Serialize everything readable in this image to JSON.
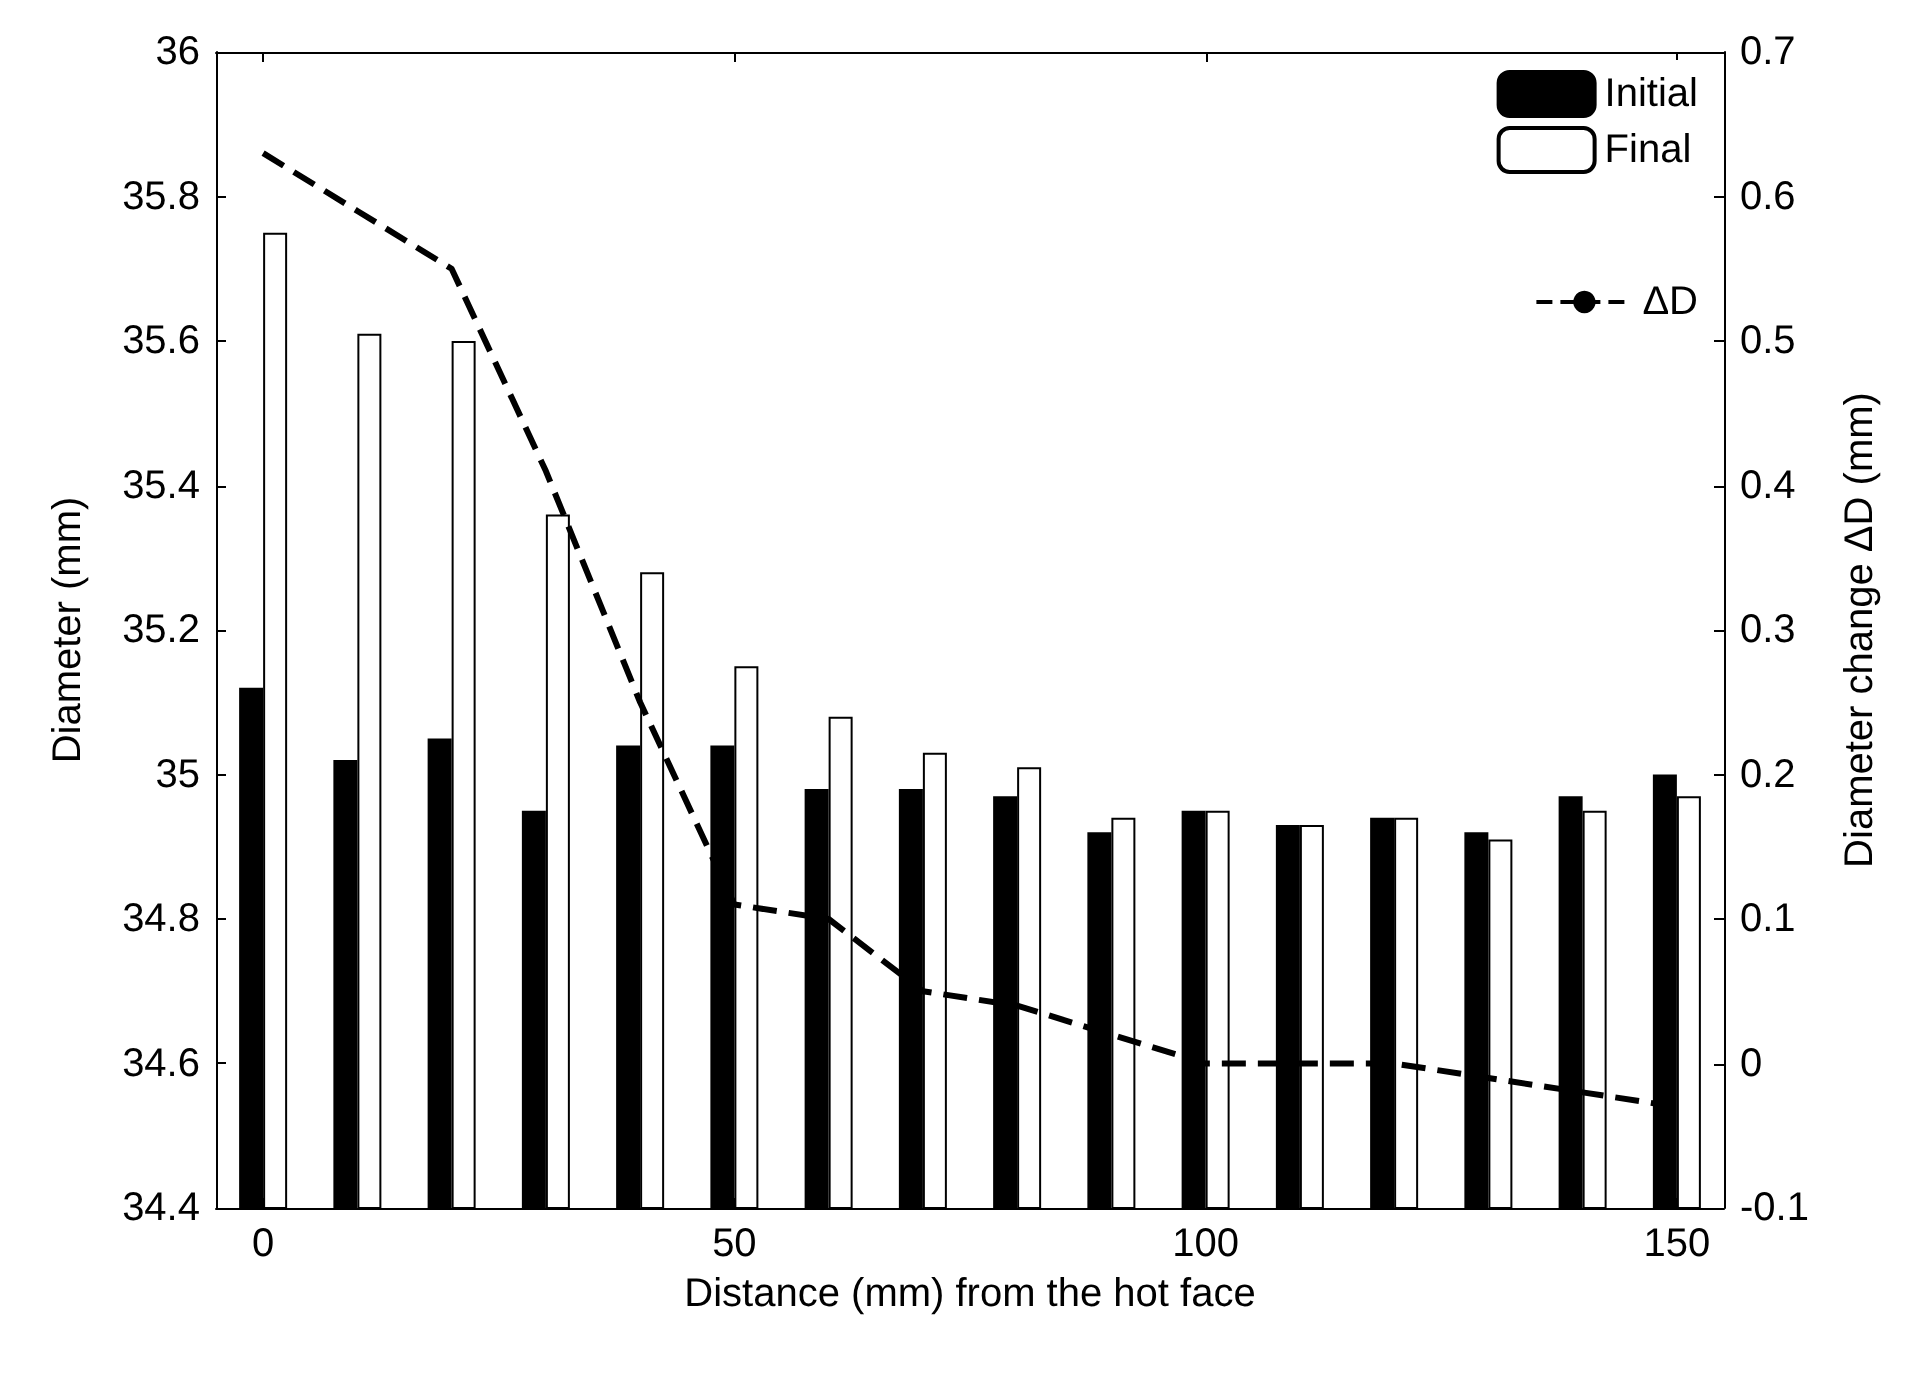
{
  "chart_data": {
    "type": "bar",
    "xlabel": "Distance (mm) from the hot face",
    "ylabel": "Diameter (mm)",
    "y2label": "Diameter change ΔD (mm)",
    "x": [
      0,
      10,
      20,
      30,
      40,
      50,
      60,
      70,
      80,
      90,
      100,
      110,
      120,
      130,
      140,
      150
    ],
    "series": [
      {
        "name": "Initial",
        "color": "#000000",
        "values": [
          35.12,
          35.02,
          35.05,
          34.95,
          35.04,
          35.04,
          34.98,
          34.98,
          34.97,
          34.92,
          34.95,
          34.93,
          34.94,
          34.92,
          34.97,
          35.0
        ]
      },
      {
        "name": "Final",
        "color": "#ffffff",
        "values": [
          35.75,
          35.61,
          35.6,
          35.36,
          35.28,
          35.15,
          35.08,
          35.03,
          35.01,
          34.94,
          34.95,
          34.93,
          34.94,
          34.91,
          34.95,
          34.97
        ]
      },
      {
        "name": "ΔD",
        "type": "line",
        "axis": "y2",
        "color": "#000000",
        "line_style": "dashed",
        "marker": "none",
        "values": [
          0.63,
          0.59,
          0.55,
          0.41,
          0.25,
          0.11,
          0.1,
          0.05,
          0.04,
          0.02,
          0,
          0,
          0,
          -0.01,
          -0.02,
          -0.03
        ]
      }
    ],
    "xlim": [
      -5,
      155
    ],
    "xticks": [
      0,
      50,
      100,
      150
    ],
    "ylim": [
      34.4,
      36
    ],
    "yticks": [
      34.4,
      34.6,
      34.8,
      35,
      35.2,
      35.4,
      35.6,
      35.8,
      36
    ],
    "y2lim": [
      -0.1,
      0.7
    ],
    "y2ticks": [
      -0.1,
      0,
      0.1,
      0.2,
      0.3,
      0.4,
      0.5,
      0.6,
      0.7
    ],
    "legend": "top right",
    "grid": false
  }
}
